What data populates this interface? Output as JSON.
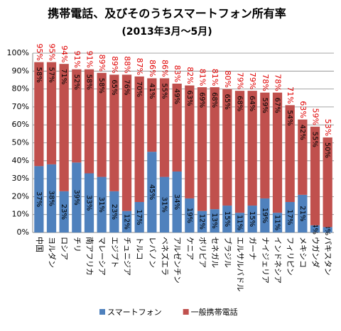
{
  "chart_data": {
    "type": "stacked_bar",
    "title": "携帯電話、及びそのうちスマートフォン所有率",
    "subtitle": "(2013年3月～5月)",
    "categories": [
      "中国",
      "ヨルダン",
      "ロシア",
      "チリ",
      "南アフリカ",
      "マレーシア",
      "エジプト",
      "チュニジア",
      "トルコ",
      "レバノン",
      "ベネズエラ",
      "アルゼンチン",
      "ケニア",
      "ボリビア",
      "セネガル",
      "ブラジル",
      "エルサルバドル",
      "ガーナ",
      "ナイジェリア",
      "インドネシア",
      "フィリピン",
      "メキシコ",
      "ウガンダ",
      "パキスタン"
    ],
    "series": [
      {
        "name": "スマートフォン",
        "color": "#4f81bd",
        "values": [
          37,
          38,
          23,
          39,
          33,
          31,
          23,
          12,
          17,
          45,
          31,
          34,
          19,
          12,
          13,
          15,
          11,
          15,
          19,
          11,
          17,
          21,
          4,
          3
        ],
        "value_labels": [
          "37%",
          "38%",
          "23%",
          "39%",
          "33%",
          "31%",
          "23%",
          "12%",
          "17%",
          "45%",
          "31%",
          "34%",
          "19%",
          "12%",
          "13%",
          "15%",
          "11%",
          "15%",
          "19%",
          "11%",
          "17%",
          "21%",
          "4%",
          "3%"
        ]
      },
      {
        "name": "一般携帯電話",
        "color": "#c0504d",
        "values": [
          58,
          57,
          71,
          52,
          58,
          58,
          65,
          76,
          70,
          41,
          55,
          49,
          63,
          69,
          68,
          65,
          68,
          64,
          59,
          67,
          54,
          42,
          55,
          50
        ],
        "value_labels": [
          "58%",
          "57%",
          "71%",
          "52%",
          "58%",
          "58%",
          "65%",
          "76%",
          "70%",
          "41%",
          "55%",
          "49%",
          "63%",
          "69%",
          "68%",
          "65%",
          "68%",
          "64%",
          "59%",
          "67%",
          "54%",
          "42%",
          "55%",
          "50%"
        ]
      }
    ],
    "totals": [
      95,
      95,
      94,
      91,
      91,
      89,
      89,
      88,
      87,
      86,
      86,
      83,
      82,
      81,
      81,
      80,
      79,
      79,
      78,
      78,
      71,
      63,
      59,
      53
    ],
    "total_labels": [
      "95%",
      "95%",
      "94%",
      "91%",
      "91%",
      "89%",
      "89%",
      "88%",
      "87%",
      "86%",
      "86%",
      "83%",
      "82%",
      "81%",
      "81%",
      "80%",
      "79%",
      "79%",
      "78%",
      "78%",
      "71%",
      "63%",
      "59%",
      "53%"
    ],
    "ylim": [
      0,
      100
    ],
    "yticks": [
      {
        "value": 0,
        "label": "0%"
      },
      {
        "value": 10,
        "label": "10%"
      },
      {
        "value": 20,
        "label": "20%"
      },
      {
        "value": 30,
        "label": "30%"
      },
      {
        "value": 40,
        "label": "40%"
      },
      {
        "value": 50,
        "label": "50%"
      },
      {
        "value": 60,
        "label": "60%"
      },
      {
        "value": 70,
        "label": "70%"
      },
      {
        "value": 80,
        "label": "80%"
      },
      {
        "value": 90,
        "label": "90%"
      },
      {
        "value": 100,
        "label": "100%"
      }
    ],
    "grid": true
  }
}
